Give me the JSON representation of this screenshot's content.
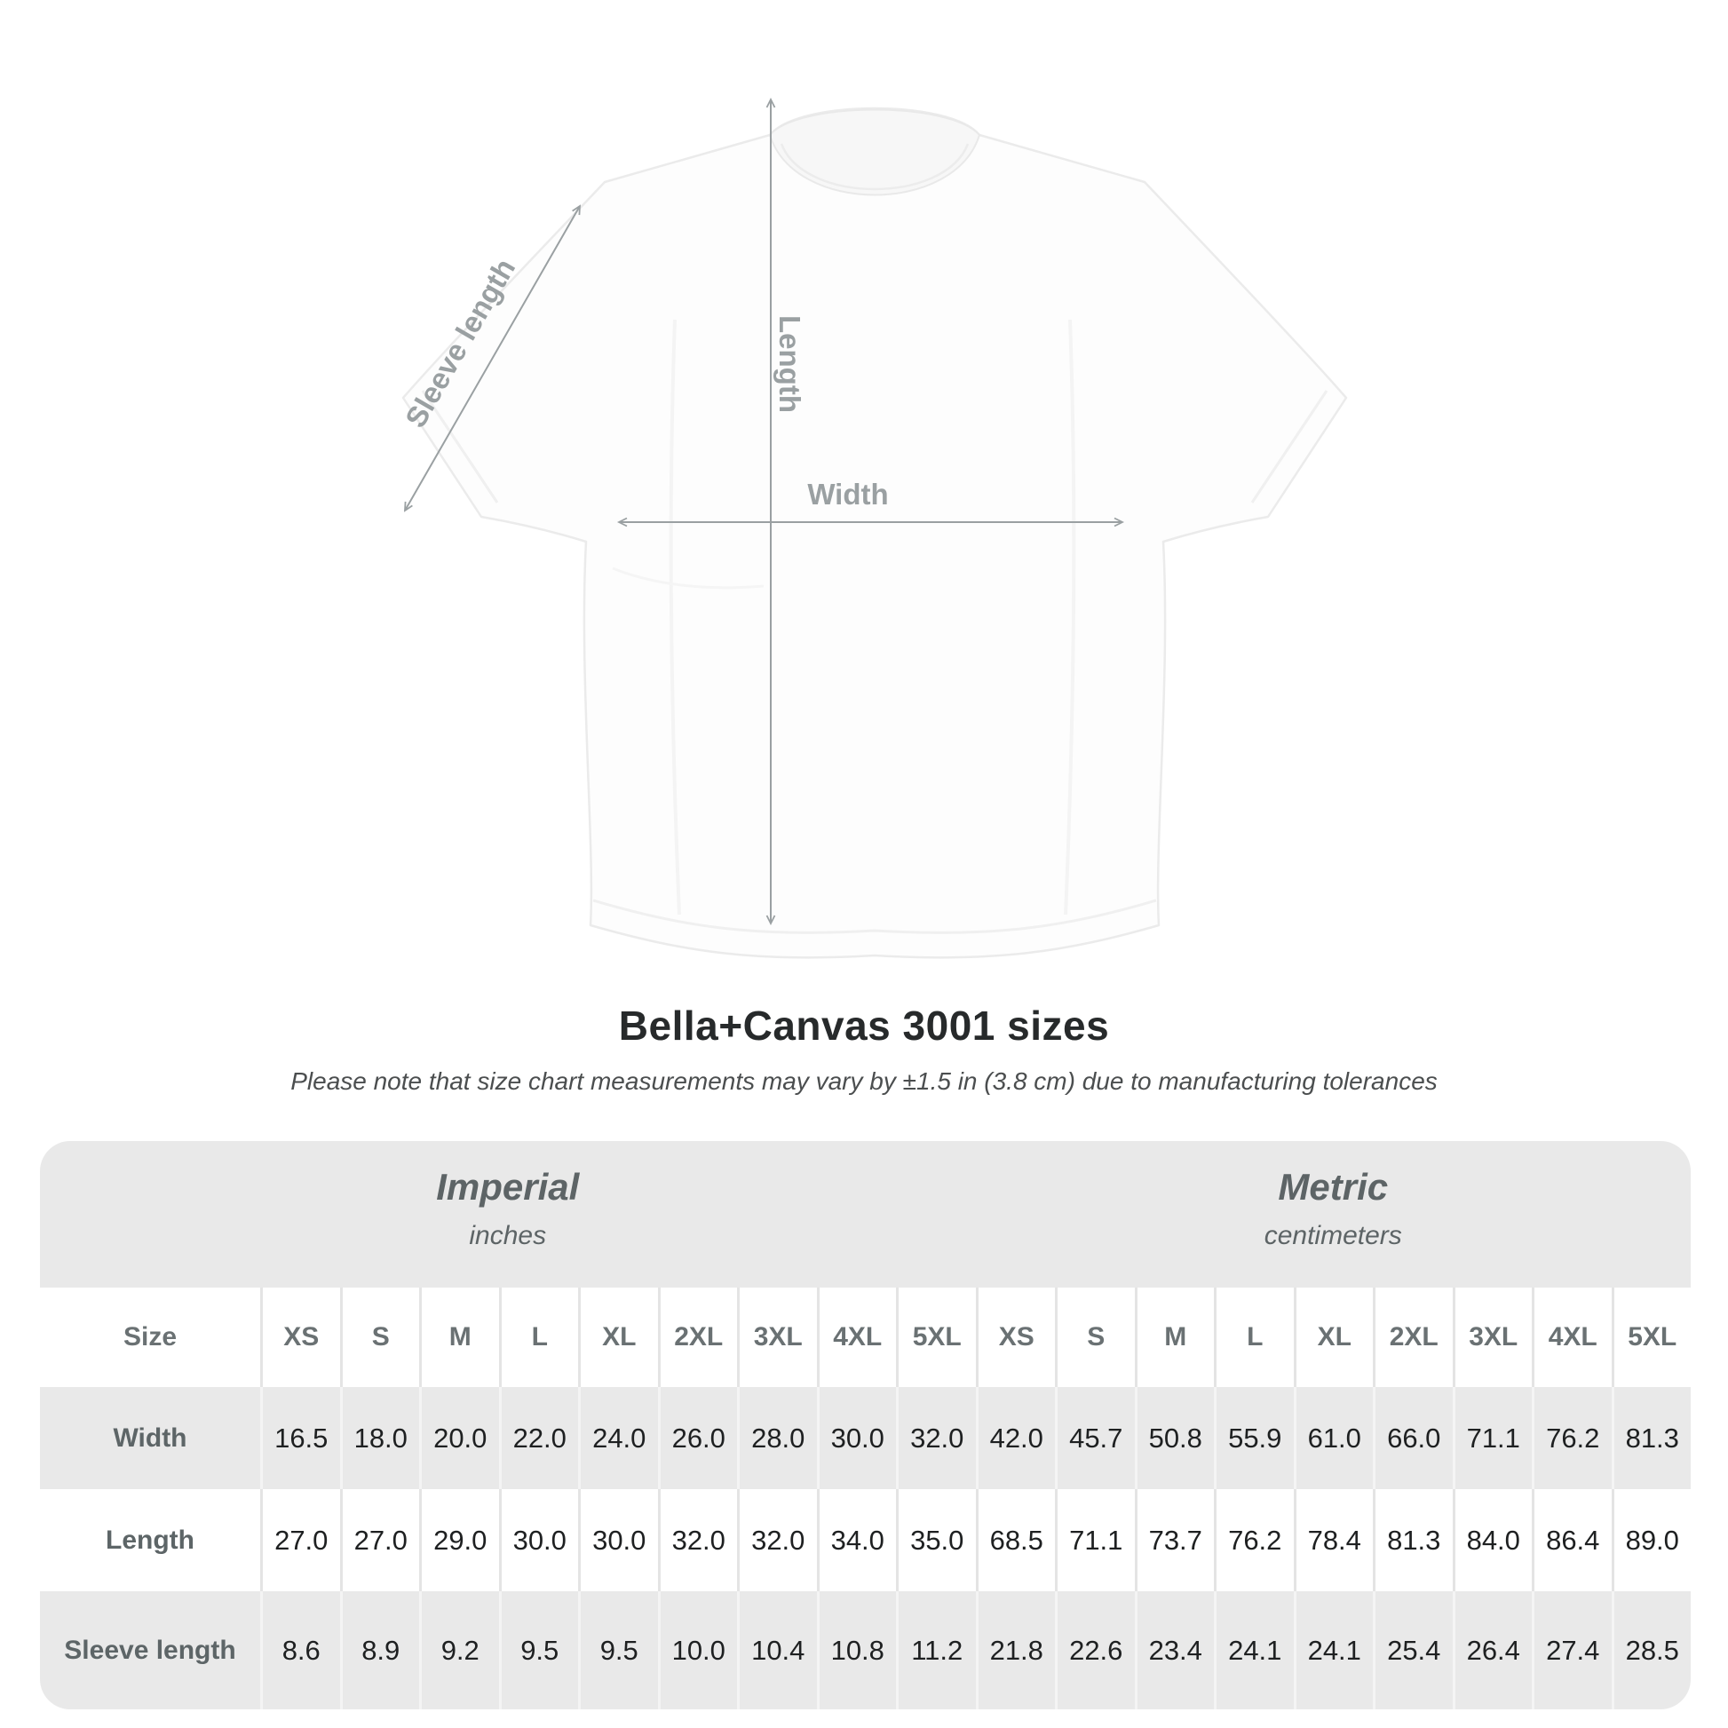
{
  "page": {
    "title": "Bella+Canvas 3001 sizes",
    "subtitle": "Please note that size chart measurements may vary by ±1.5 in (3.8 cm) due to manufacturing tolerances"
  },
  "diagram": {
    "labels": {
      "sleeve_length": "Sleeve length",
      "length": "Length",
      "width": "Width"
    }
  },
  "chart_data": {
    "type": "table",
    "title": "Bella+Canvas 3001 sizes",
    "note": "Please note that size chart measurements may vary by ±1.5 in (3.8 cm) due to manufacturing tolerances",
    "unit_groups": [
      {
        "name": "Imperial",
        "unit": "inches"
      },
      {
        "name": "Metric",
        "unit": "centimeters"
      }
    ],
    "size_label": "Size",
    "sizes": [
      "XS",
      "S",
      "M",
      "L",
      "XL",
      "2XL",
      "3XL",
      "4XL",
      "5XL"
    ],
    "rows": [
      {
        "label": "Width",
        "imperial": [
          "16.5",
          "18.0",
          "20.0",
          "22.0",
          "24.0",
          "26.0",
          "28.0",
          "30.0",
          "32.0"
        ],
        "metric": [
          "42.0",
          "45.7",
          "50.8",
          "55.9",
          "61.0",
          "66.0",
          "71.1",
          "76.2",
          "81.3"
        ]
      },
      {
        "label": "Length",
        "imperial": [
          "27.0",
          "27.0",
          "29.0",
          "30.0",
          "30.0",
          "32.0",
          "32.0",
          "34.0",
          "35.0"
        ],
        "metric": [
          "68.5",
          "71.1",
          "73.7",
          "76.2",
          "78.4",
          "81.3",
          "84.0",
          "86.4",
          "89.0"
        ]
      },
      {
        "label": "Sleeve length",
        "imperial": [
          "8.6",
          "8.9",
          "9.2",
          "9.5",
          "9.5",
          "10.0",
          "10.4",
          "10.8",
          "11.2"
        ],
        "metric": [
          "21.8",
          "22.6",
          "23.4",
          "24.1",
          "24.1",
          "25.4",
          "26.4",
          "27.4",
          "28.5"
        ]
      }
    ]
  },
  "colors": {
    "background": "#ffffff",
    "band_gray": "#e9e9e9",
    "separator_on_white": "#e4e4e4",
    "separator_on_gray": "#f4f4f4",
    "header_text": "#5d6466",
    "size_header_text": "#6a7173",
    "row_label_text": "#5d6567",
    "value_text": "#1e2021",
    "arrow_gray": "#9aa0a2",
    "title_text": "#272a2b",
    "subtitle_text": "#4b4e4f",
    "shirt_fill": "#fdfdfd",
    "shirt_outline": "#ebebeb"
  }
}
